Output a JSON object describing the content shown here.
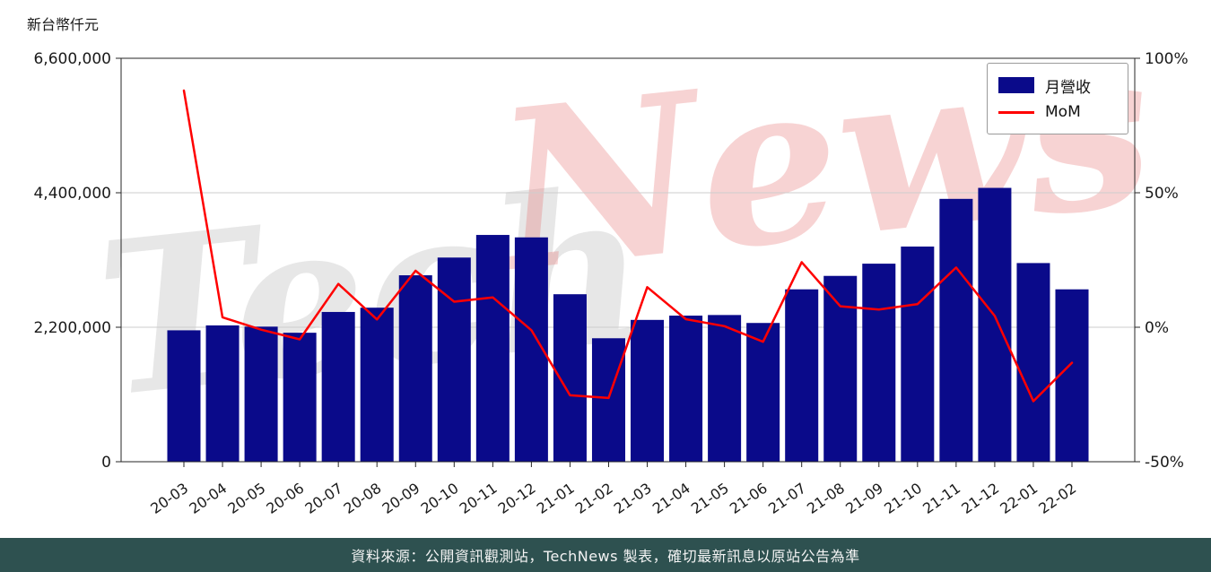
{
  "unit_label": "新台幣仟元",
  "watermark": {
    "part1": "Tech",
    "part2": "News",
    "color1": "#afafaf",
    "color2": "#e66e6e"
  },
  "legend": {
    "bar_label": "月營收",
    "line_label": "MoM"
  },
  "footer": {
    "text": "資料來源：公開資訊觀測站，TechNews 製表，確切最新訊息以原站公告為準",
    "background": "#2e5150",
    "color": "#f4f4f4"
  },
  "chart_data": {
    "type": "bar",
    "title": "",
    "ylabel": "新台幣仟元",
    "y2label": "%",
    "legend_position": "top-right",
    "grid": true,
    "categories": [
      "20-03",
      "20-04",
      "20-05",
      "20-06",
      "20-07",
      "20-08",
      "20-09",
      "20-10",
      "20-11",
      "20-12",
      "21-01",
      "21-02",
      "21-03",
      "21-04",
      "21-05",
      "21-06",
      "21-07",
      "21-08",
      "21-09",
      "21-10",
      "21-11",
      "21-12",
      "22-01",
      "22-02"
    ],
    "series": [
      {
        "name": "月營收",
        "type": "bar",
        "axis": "left",
        "color": "#0a0a8a",
        "values": [
          2150000,
          2230000,
          2210000,
          2110000,
          2450000,
          2520000,
          3050000,
          3340000,
          3710000,
          3670000,
          2740000,
          2020000,
          2320000,
          2390000,
          2400000,
          2270000,
          2820000,
          3040000,
          3240000,
          3520000,
          4300000,
          4480000,
          3250000,
          2820000
        ]
      },
      {
        "name": "MoM",
        "type": "line",
        "axis": "right",
        "color": "#ff0000",
        "values": [
          88.0,
          3.7,
          -0.9,
          -4.5,
          16.1,
          2.9,
          21.0,
          9.5,
          11.1,
          -1.1,
          -25.3,
          -26.3,
          14.9,
          3.0,
          0.4,
          -5.4,
          24.2,
          7.8,
          6.6,
          8.6,
          22.2,
          4.2,
          -27.5,
          -13.2
        ]
      }
    ],
    "left_axis": {
      "min": 0,
      "max": 6600000,
      "ticks": [
        0,
        2200000,
        4400000,
        6600000
      ],
      "tick_labels": [
        "0",
        "2,200,000",
        "4,400,000",
        "6,600,000"
      ]
    },
    "right_axis": {
      "min": -50,
      "max": 100,
      "ticks": [
        -50,
        0,
        50,
        100
      ],
      "tick_labels": [
        "-50%",
        "0%",
        "50%",
        "100%"
      ]
    },
    "gridline_values": [
      2200000,
      4400000
    ]
  }
}
